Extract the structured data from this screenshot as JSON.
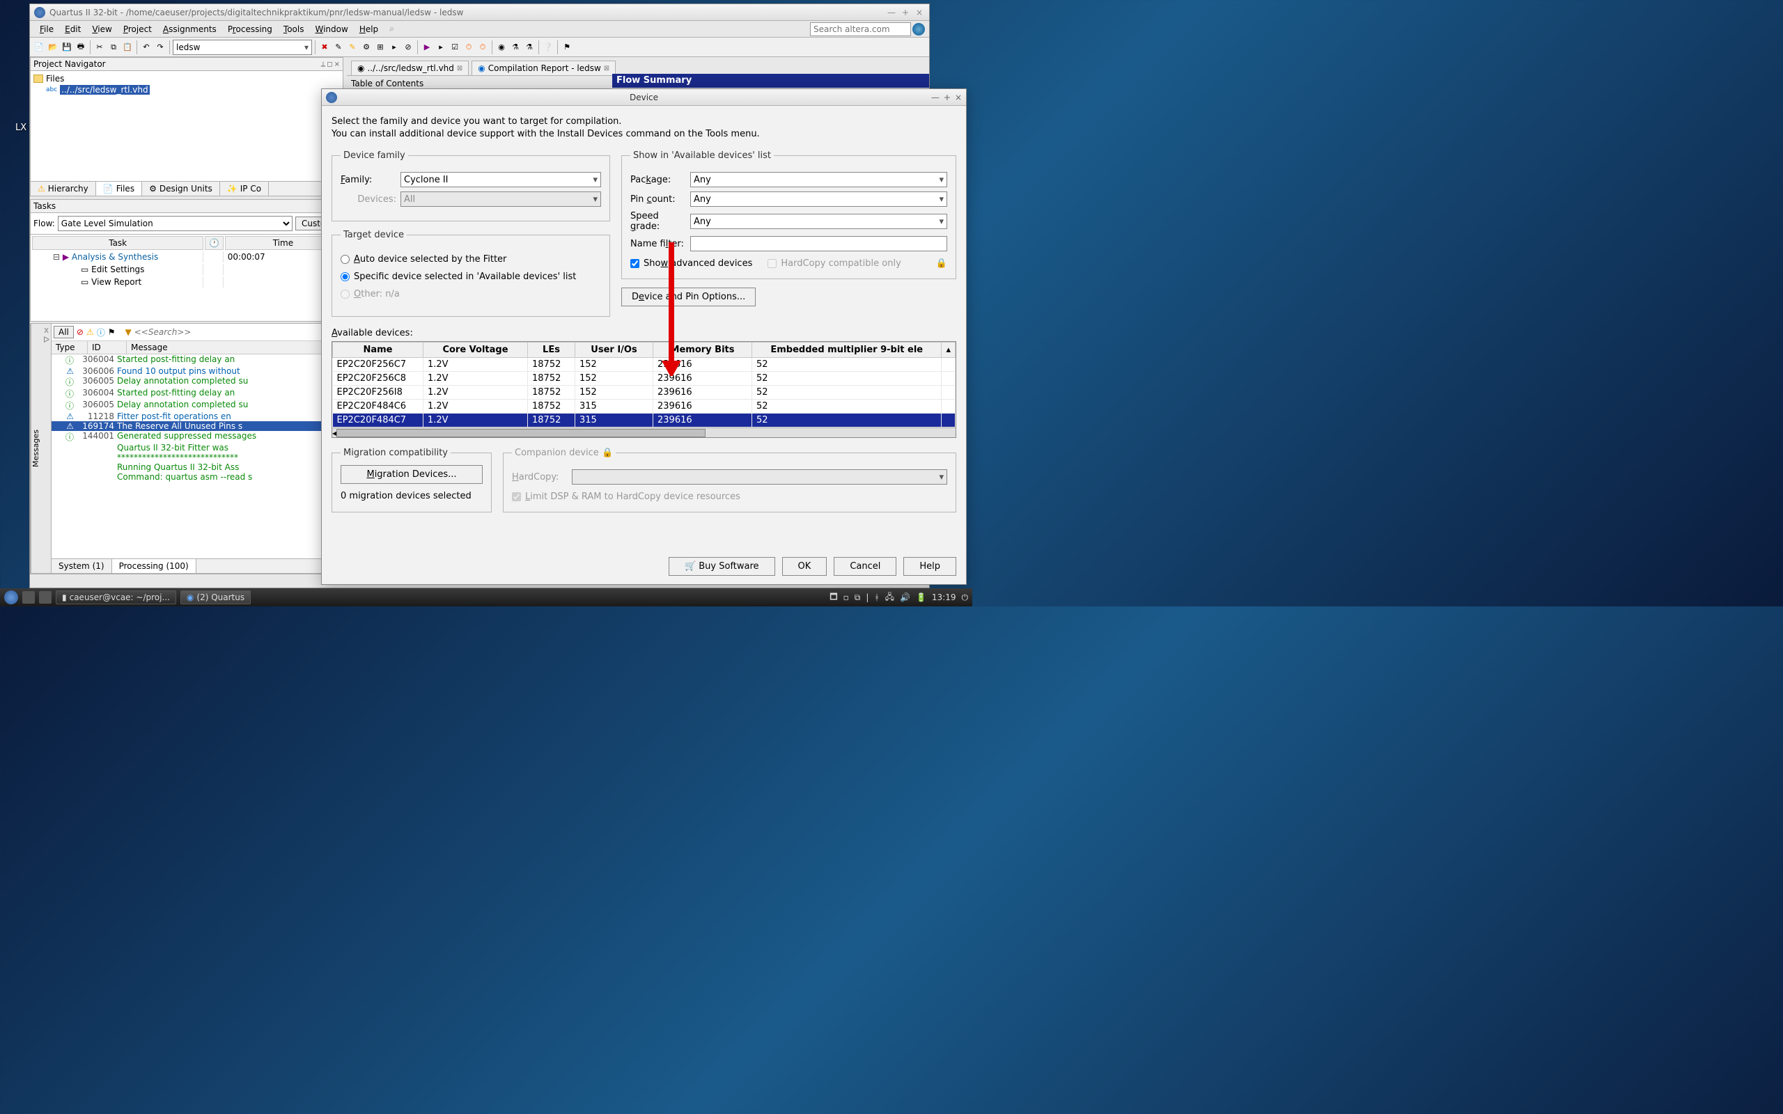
{
  "desktop": {
    "label": "LX"
  },
  "main_window": {
    "title": "Quartus II 32-bit - /home/caeuser/projects/digitaltechnikpraktikum/pnr/ledsw-manual/ledsw - ledsw",
    "menu": [
      "File",
      "Edit",
      "View",
      "Project",
      "Assignments",
      "Processing",
      "Tools",
      "Window",
      "Help"
    ],
    "project_selector": "ledsw",
    "search_placeholder": "Search altera.com"
  },
  "project_nav": {
    "title": "Project Navigator",
    "root": "Files",
    "file": "../../src/ledsw_rtl.vhd",
    "tabs": [
      "Hierarchy",
      "Files",
      "Design Units",
      "IP Co"
    ],
    "active_tab": 1
  },
  "tasks": {
    "title": "Tasks",
    "flow_label": "Flow:",
    "flow_value": "Gate Level Simulation",
    "custom_btn": "Custom",
    "columns": [
      "Task",
      "",
      "Time"
    ],
    "rows": [
      {
        "task": "Analysis & Synthesis",
        "time": "00:00:07",
        "link": true
      },
      {
        "task": "Edit Settings",
        "time": "",
        "link": false
      },
      {
        "task": "View Report",
        "time": "",
        "link": false
      }
    ]
  },
  "editor": {
    "tab1": "../../src/ledsw_rtl.vhd",
    "tab2": "Compilation Report - ledsw",
    "toc": "Table of Contents",
    "flow_summary": "Flow Summary"
  },
  "messages": {
    "side_label": "Messages",
    "all": "All",
    "search_ph": "<<Search>>",
    "columns": [
      "Type",
      "ID",
      "Message"
    ],
    "rows": [
      {
        "cls": "",
        "id": "306004",
        "msg": "Started post-fitting delay an"
      },
      {
        "cls": "warn",
        "id": "306006",
        "msg": "Found 10 output pins without"
      },
      {
        "cls": "",
        "id": "306005",
        "msg": "Delay annotation completed su"
      },
      {
        "cls": "",
        "id": "306004",
        "msg": "Started post-fitting delay an"
      },
      {
        "cls": "",
        "id": "306005",
        "msg": "Delay annotation completed su"
      },
      {
        "cls": "warn",
        "id": "11218",
        "msg": "Fitter post-fit operations en"
      },
      {
        "cls": "sel",
        "id": "169174",
        "msg": "The Reserve All Unused Pins s"
      },
      {
        "cls": "",
        "id": "144001",
        "msg": "Generated suppressed messages"
      },
      {
        "cls": "",
        "id": "",
        "msg": "Quartus II 32-bit Fitter was "
      },
      {
        "cls": "",
        "id": "",
        "msg": "*****************************"
      },
      {
        "cls": "",
        "id": "",
        "msg": "Running Quartus II 32-bit Ass"
      },
      {
        "cls": "",
        "id": "",
        "msg": "Command: quartus asm --read s"
      }
    ],
    "tabs": [
      "System (1)",
      "Processing (100)"
    ]
  },
  "dialog": {
    "title": "Device",
    "intro1": "Select the family and device you want to target for compilation.",
    "intro2": "You can install additional device support with the Install Devices command on the Tools menu.",
    "device_family": {
      "legend": "Device family",
      "family_label": "Family:",
      "family_value": "Cyclone II",
      "devices_label": "Devices:",
      "devices_value": "All"
    },
    "show_list": {
      "legend": "Show in 'Available devices' list",
      "package_label": "Package:",
      "package_value": "Any",
      "pin_label": "Pin count:",
      "pin_value": "Any",
      "speed_label": "Speed grade:",
      "speed_value": "Any",
      "name_label": "Name filter:",
      "adv_label": "Show advanced devices",
      "hc_label": "HardCopy compatible only"
    },
    "target": {
      "legend": "Target device",
      "auto": "Auto device selected by the Fitter",
      "specific": "Specific device selected in 'Available devices' list",
      "other": "Other: n/a"
    },
    "dpo_btn": "Device and Pin Options...",
    "avail_label": "Available devices:",
    "table": {
      "columns": [
        "Name",
        "Core Voltage",
        "LEs",
        "User I/Os",
        "Memory Bits",
        "Embedded multiplier 9-bit ele"
      ],
      "rows": [
        [
          "EP2C20F256C7",
          "1.2V",
          "18752",
          "152",
          "239616",
          "52"
        ],
        [
          "EP2C20F256C8",
          "1.2V",
          "18752",
          "152",
          "239616",
          "52"
        ],
        [
          "EP2C20F256I8",
          "1.2V",
          "18752",
          "152",
          "239616",
          "52"
        ],
        [
          "EP2C20F484C6",
          "1.2V",
          "18752",
          "315",
          "239616",
          "52"
        ],
        [
          "EP2C20F484C7",
          "1.2V",
          "18752",
          "315",
          "239616",
          "52"
        ]
      ],
      "selected_row": 4
    },
    "migration": {
      "legend": "Migration compatibility",
      "btn": "Migration Devices...",
      "status": "0 migration devices selected"
    },
    "companion": {
      "legend": "Companion device",
      "hc_label": "HardCopy:",
      "limit_label": "Limit DSP & RAM to HardCopy device resources"
    },
    "buttons": {
      "buy": "Buy Software",
      "ok": "OK",
      "cancel": "Cancel",
      "help": "Help"
    }
  },
  "taskbar": {
    "task1": "caeuser@vcae: ~/proj...",
    "task2": "(2) Quartus",
    "clock": "13:19"
  }
}
